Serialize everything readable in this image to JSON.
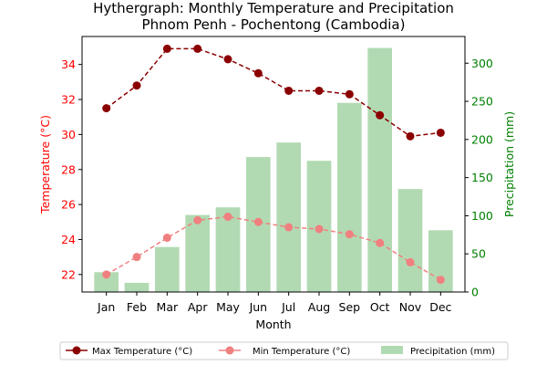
{
  "chart_data": {
    "type": "bar+line",
    "title_line1": "Hythergraph: Monthly Temperature and Precipitation",
    "title_line2": "Phnom Penh - Pochentong (Cambodia)",
    "xlabel": "Month",
    "ylabel_left": "Temperature (°C)",
    "ylabel_right": "Precipitation (mm)",
    "categories": [
      "Jan",
      "Feb",
      "Mar",
      "Apr",
      "May",
      "Jun",
      "Jul",
      "Aug",
      "Sep",
      "Oct",
      "Nov",
      "Dec"
    ],
    "ylim_left": [
      21.0,
      35.6
    ],
    "yticks_left": [
      "22",
      "24",
      "26",
      "28",
      "30",
      "32",
      "34"
    ],
    "ylim_right": [
      0,
      335
    ],
    "yticks_right": [
      "0",
      "50",
      "100",
      "150",
      "200",
      "250",
      "300"
    ],
    "series": [
      {
        "name": "Max Temperature (°C)",
        "type": "line",
        "axis": "left",
        "color": "#8b0000",
        "line_style": "dashed",
        "marker": "circle",
        "values": [
          31.5,
          32.8,
          34.9,
          34.9,
          34.3,
          33.5,
          32.5,
          32.5,
          32.3,
          31.1,
          29.9,
          30.1
        ]
      },
      {
        "name": "Min Temperature (°C)",
        "type": "line",
        "axis": "left",
        "color": "#f08080",
        "line_style": "dashed",
        "marker": "circle",
        "values": [
          22.0,
          23.0,
          24.1,
          25.1,
          25.3,
          25.0,
          24.7,
          24.6,
          24.3,
          23.8,
          22.7,
          21.7
        ]
      },
      {
        "name": "Precipitation (mm)",
        "type": "bar",
        "axis": "right",
        "color": "#2e9b2e",
        "opacity": 0.37,
        "values": [
          26,
          12,
          59,
          101,
          111,
          177,
          196,
          172,
          248,
          320,
          135,
          81
        ]
      }
    ],
    "legend_position": "bottom-center",
    "grid": false,
    "colors": {
      "left_axis": "#ff0000",
      "right_axis": "#008000"
    }
  }
}
